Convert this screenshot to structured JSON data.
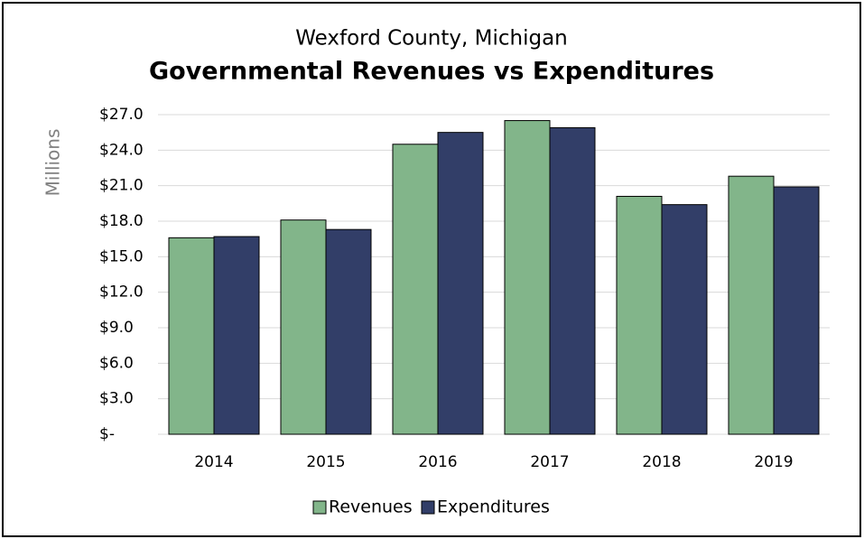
{
  "chart_data": {
    "type": "bar",
    "subtitle": "Wexford County, Michigan",
    "title": "Governmental Revenues vs Expenditures",
    "y_label": "Millions",
    "categories": [
      "2014",
      "2015",
      "2016",
      "2017",
      "2018",
      "2019"
    ],
    "series": [
      {
        "name": "Revenues",
        "color": "#82b58a",
        "values": [
          16.6,
          18.1,
          24.5,
          26.5,
          20.1,
          21.8
        ]
      },
      {
        "name": "Expenditures",
        "color": "#323e68",
        "values": [
          16.7,
          17.3,
          25.5,
          25.9,
          19.4,
          20.9
        ]
      }
    ],
    "ylim": [
      0,
      27
    ],
    "yticks": [
      {
        "value": 0,
        "label": "$-"
      },
      {
        "value": 3,
        "label": "$3.0"
      },
      {
        "value": 6,
        "label": "$6.0"
      },
      {
        "value": 9,
        "label": "$9.0"
      },
      {
        "value": 12,
        "label": "$12.0"
      },
      {
        "value": 15,
        "label": "$15.0"
      },
      {
        "value": 18,
        "label": "$18.0"
      },
      {
        "value": 21,
        "label": "$21.0"
      },
      {
        "value": 24,
        "label": "$24.0"
      },
      {
        "value": 27,
        "label": "$27.0"
      }
    ],
    "grid": true,
    "legend": "bottom"
  }
}
